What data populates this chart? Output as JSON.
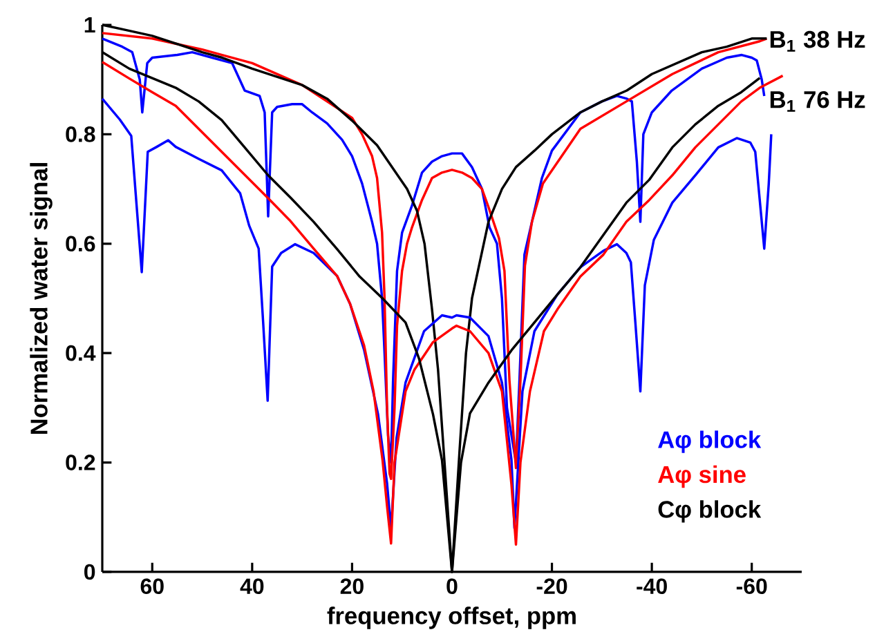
{
  "chart_data": {
    "type": "line",
    "xlabel": "frequency offset, ppm",
    "ylabel": "Normalized water signal",
    "xlim": [
      70,
      -70
    ],
    "ylim": [
      0,
      1
    ],
    "xticks": [
      60,
      40,
      20,
      0,
      -20,
      -40,
      -60
    ],
    "yticks": [
      0,
      0.2,
      0.4,
      0.6,
      0.8,
      1
    ],
    "legend": "bottom right",
    "annotations": [
      {
        "text": "B$_{1}$ 38 Hz",
        "x": -63,
        "y": 0.97
      },
      {
        "text": "B$_{1}$ 76 Hz",
        "x": -63,
        "y": 0.86
      }
    ],
    "series": [
      {
        "name": "Aφ block",
        "color": "#0000ff",
        "x": [
          70,
          66,
          64,
          62.5,
          62,
          61,
          60,
          55,
          52,
          48,
          44,
          41.5,
          38.5,
          37.5,
          36.8,
          36,
          35,
          32,
          30,
          28,
          25,
          22,
          20,
          18,
          16,
          15,
          14,
          13.5,
          12.8,
          12.2,
          11.8,
          11,
          10,
          8,
          6,
          4,
          2,
          0,
          -2,
          -4,
          -6,
          -7.5,
          -9,
          -10,
          -11,
          -12.8,
          -13.5,
          -14.5,
          -16,
          -18,
          -20,
          -25.7,
          -30,
          -33,
          -35,
          -36,
          -37,
          -37.7,
          -38.3,
          -40,
          -44,
          -50,
          -55,
          -58,
          -60,
          -61,
          -62,
          -62.5
        ],
        "values": [
          0.975,
          0.96,
          0.95,
          0.9,
          0.84,
          0.93,
          0.94,
          0.945,
          0.95,
          0.94,
          0.93,
          0.88,
          0.87,
          0.84,
          0.65,
          0.84,
          0.85,
          0.855,
          0.855,
          0.84,
          0.82,
          0.79,
          0.76,
          0.71,
          0.64,
          0.6,
          0.5,
          0.4,
          0.25,
          0.2,
          0.35,
          0.55,
          0.62,
          0.67,
          0.73,
          0.75,
          0.76,
          0.765,
          0.765,
          0.74,
          0.7,
          0.63,
          0.6,
          0.5,
          0.3,
          0.2,
          0.35,
          0.58,
          0.64,
          0.72,
          0.77,
          0.84,
          0.86,
          0.87,
          0.865,
          0.86,
          0.75,
          0.64,
          0.8,
          0.84,
          0.88,
          0.92,
          0.94,
          0.945,
          0.94,
          0.935,
          0.9,
          0.87
        ]
      },
      {
        "name": "Aφ sine",
        "color": "#ff0000",
        "x": [
          70,
          60,
          50,
          46,
          40,
          35,
          30,
          25,
          20,
          18,
          16,
          15,
          14,
          13.5,
          13,
          12.5,
          12.2,
          11.5,
          11,
          10,
          9,
          8,
          6,
          4,
          2,
          0,
          -2,
          -4,
          -6,
          -7.3,
          -9.4,
          -10.5,
          -11.5,
          -12.8,
          -13.7,
          -14.6,
          -16,
          -18.2,
          -25.7,
          -34.9,
          -44.1,
          -53.3,
          -61.6,
          -63
        ],
        "values": [
          0.985,
          0.975,
          0.955,
          0.945,
          0.93,
          0.91,
          0.89,
          0.86,
          0.83,
          0.8,
          0.76,
          0.72,
          0.62,
          0.5,
          0.3,
          0.18,
          0.17,
          0.3,
          0.45,
          0.55,
          0.6,
          0.63,
          0.68,
          0.72,
          0.73,
          0.735,
          0.73,
          0.72,
          0.7,
          0.667,
          0.61,
          0.55,
          0.35,
          0.19,
          0.35,
          0.56,
          0.64,
          0.71,
          0.81,
          0.86,
          0.91,
          0.95,
          0.97,
          0.975
        ]
      },
      {
        "name": "Cφ block",
        "color": "#000000",
        "x": [
          70,
          65,
          60,
          55,
          50,
          46,
          40,
          35,
          30,
          25,
          20,
          15,
          12,
          9,
          7,
          5.5,
          4,
          2.8,
          1.5,
          0,
          -1.5,
          -2.8,
          -4,
          -7.3,
          -10,
          -12.8,
          -16.5,
          -20,
          -25.7,
          -30,
          -35,
          -40,
          -45,
          -50,
          -55,
          -60,
          -63
        ],
        "values": [
          1.0,
          0.99,
          0.98,
          0.965,
          0.95,
          0.94,
          0.92,
          0.905,
          0.89,
          0.865,
          0.825,
          0.78,
          0.74,
          0.7,
          0.66,
          0.6,
          0.48,
          0.37,
          0.2,
          0,
          0.22,
          0.4,
          0.5,
          0.64,
          0.7,
          0.74,
          0.77,
          0.8,
          0.84,
          0.86,
          0.88,
          0.91,
          0.93,
          0.95,
          0.96,
          0.975,
          0.975
        ]
      },
      {
        "color": "#0000ff",
        "x": [
          70,
          66.5,
          64.2,
          63.3,
          62.1,
          60.9,
          59.1,
          56.8,
          55.3,
          50.7,
          46.1,
          42.4,
          40.6,
          38.7,
          37.8,
          36.9,
          36,
          34.2,
          31.4,
          27.7,
          23,
          20.4,
          17.6,
          14.8,
          13,
          12.2,
          11.1,
          9.3,
          5.6,
          2,
          0,
          -0.9,
          -3.6,
          -7.3,
          -10,
          -11.9,
          -12.5,
          -14.1,
          -16.5,
          -21.1,
          -25.7,
          -30.3,
          -33,
          -34.9,
          -35.8,
          -36.7,
          -37.7,
          -38.6,
          -40.4,
          -44.1,
          -48.7,
          -53.3,
          -57,
          -59.7,
          -60.7,
          -62.5,
          -63.4,
          -63.9
        ],
        "values": [
          0.865,
          0.827,
          0.797,
          0.69,
          0.548,
          0.768,
          0.777,
          0.789,
          0.777,
          0.755,
          0.734,
          0.692,
          0.633,
          0.591,
          0.456,
          0.313,
          0.558,
          0.583,
          0.599,
          0.583,
          0.541,
          0.49,
          0.406,
          0.288,
          0.162,
          0.078,
          0.245,
          0.346,
          0.44,
          0.469,
          0.465,
          0.469,
          0.465,
          0.431,
          0.346,
          0.205,
          0.08,
          0.33,
          0.44,
          0.507,
          0.557,
          0.587,
          0.599,
          0.583,
          0.566,
          0.456,
          0.33,
          0.524,
          0.607,
          0.675,
          0.725,
          0.776,
          0.793,
          0.785,
          0.768,
          0.591,
          0.709,
          0.8
        ]
      },
      {
        "color": "#ff0000",
        "x": [
          70,
          64.6,
          60,
          55.3,
          46.1,
          36.9,
          32.3,
          27.7,
          23,
          20.4,
          17.6,
          15.7,
          13.9,
          13,
          12.2,
          11.5,
          9.3,
          7.5,
          3.8,
          0,
          -0.9,
          -3.6,
          -7.3,
          -10,
          -11.9,
          -12.8,
          -13.7,
          -15.6,
          -18.4,
          -21.1,
          -25.7,
          -30.3,
          -34.9,
          -39.5,
          -44.1,
          -48.7,
          -53.3,
          -57.9,
          -61.6,
          -66.2
        ],
        "values": [
          0.932,
          0.902,
          0.877,
          0.852,
          0.768,
          0.684,
          0.641,
          0.591,
          0.541,
          0.49,
          0.414,
          0.33,
          0.204,
          0.12,
          0.052,
          0.2,
          0.33,
          0.37,
          0.42,
          0.445,
          0.45,
          0.44,
          0.4,
          0.33,
          0.16,
          0.05,
          0.2,
          0.33,
          0.44,
          0.48,
          0.54,
          0.58,
          0.64,
          0.68,
          0.725,
          0.776,
          0.818,
          0.86,
          0.885,
          0.907
        ]
      },
      {
        "color": "#000000",
        "x": [
          70,
          64.6,
          55.3,
          50.7,
          46.1,
          41.5,
          36.9,
          32.3,
          27.7,
          23,
          18.5,
          13.9,
          9.3,
          6.6,
          3.8,
          2,
          0,
          -1.8,
          -3.6,
          -7.3,
          -11.9,
          -16.5,
          -21.1,
          -25.7,
          -30.3,
          -34.9,
          -39.5,
          -44.1,
          -48.7,
          -53.3,
          -57.9,
          -61.6
        ],
        "values": [
          0.95,
          0.92,
          0.885,
          0.86,
          0.826,
          0.776,
          0.726,
          0.684,
          0.64,
          0.59,
          0.54,
          0.5,
          0.456,
          0.39,
          0.288,
          0.204,
          0,
          0.2,
          0.29,
          0.346,
          0.405,
          0.456,
          0.507,
          0.557,
          0.616,
          0.675,
          0.717,
          0.776,
          0.818,
          0.852,
          0.877,
          0.903
        ]
      }
    ]
  }
}
